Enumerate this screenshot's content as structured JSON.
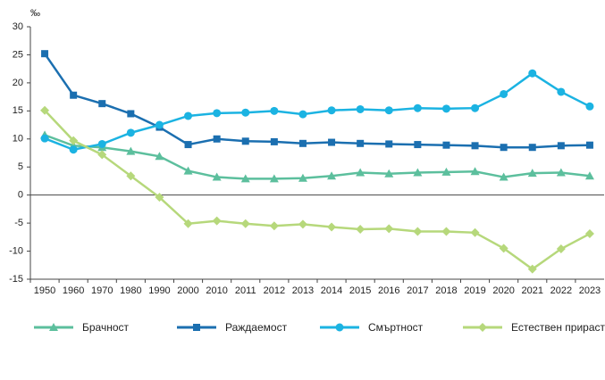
{
  "chart_data": {
    "type": "line",
    "y_label": "‰",
    "categories": [
      "1950",
      "1960",
      "1970",
      "1980",
      "1990",
      "2000",
      "2010",
      "2011",
      "2012",
      "2013",
      "2014",
      "2015",
      "2016",
      "2017",
      "2018",
      "2019",
      "2020",
      "2021",
      "2022",
      "2023"
    ],
    "ylim": [
      -15,
      30
    ],
    "yticks": [
      -15,
      -10,
      -5,
      0,
      5,
      10,
      15,
      20,
      25,
      30
    ],
    "grid": false,
    "legend": "bottom",
    "series": [
      {
        "name": "Брачност",
        "color": "#5cbf9d",
        "marker": "triangle",
        "values": [
          10.7,
          8.8,
          8.5,
          7.8,
          6.9,
          4.3,
          3.2,
          2.9,
          2.9,
          3.0,
          3.4,
          4.0,
          3.8,
          4.0,
          4.1,
          4.2,
          3.2,
          3.9,
          4.0,
          3.4
        ]
      },
      {
        "name": "Раждаемост",
        "color": "#1b6fb0",
        "marker": "square",
        "values": [
          25.2,
          17.8,
          16.3,
          14.5,
          12.1,
          9.0,
          10.0,
          9.6,
          9.5,
          9.2,
          9.4,
          9.2,
          9.1,
          9.0,
          8.9,
          8.8,
          8.5,
          8.5,
          8.8,
          8.9
        ]
      },
      {
        "name": "Смъртност",
        "color": "#1bb3e2",
        "marker": "circle",
        "values": [
          10.1,
          8.1,
          9.1,
          11.1,
          12.5,
          14.1,
          14.6,
          14.7,
          15.0,
          14.4,
          15.1,
          15.3,
          15.1,
          15.5,
          15.4,
          15.5,
          18.0,
          21.7,
          18.4,
          15.8
        ]
      },
      {
        "name": "Естествен прираст",
        "color": "#b6d87b",
        "marker": "diamond",
        "values": [
          15.1,
          9.7,
          7.2,
          3.4,
          -0.4,
          -5.1,
          -4.6,
          -5.1,
          -5.5,
          -5.2,
          -5.7,
          -6.1,
          -6.0,
          -6.5,
          -6.5,
          -6.7,
          -9.5,
          -13.2,
          -9.6,
          -6.9
        ]
      }
    ]
  }
}
